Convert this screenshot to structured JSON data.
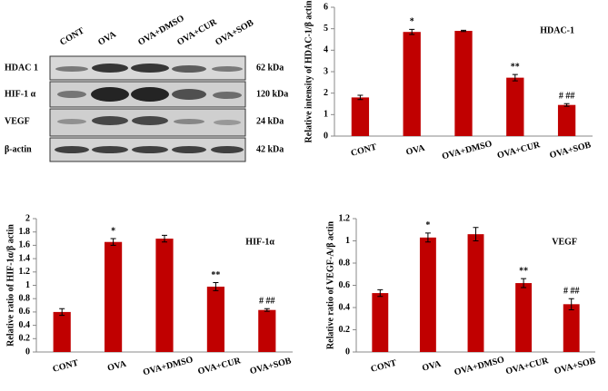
{
  "blot": {
    "lanes": [
      "CONT",
      "OVA",
      "OVA+DMSO",
      "OVA+CUR",
      "OVA+SOB"
    ],
    "rows": [
      {
        "name": "HDAC 1",
        "size": "62 kDa"
      },
      {
        "name": "HIF-1 α",
        "size": "120 kDa"
      },
      {
        "name": "VEGF",
        "size": "24 kDa"
      },
      {
        "name": "β-actin",
        "size": "42 kDa"
      }
    ]
  },
  "chart_data": [
    {
      "type": "bar",
      "title": "HDAC-1",
      "ylabel": "Relative intensity of HDAC-1/β actin",
      "categories": [
        "CONT",
        "OVA",
        "OVA+DMSO",
        "OVA+CUR",
        "OVA+SOB"
      ],
      "values": [
        1.8,
        4.85,
        4.9,
        2.72,
        1.45
      ],
      "errors": [
        0.1,
        0.12,
        0.03,
        0.15,
        0.06
      ],
      "annotations": [
        null,
        "*",
        null,
        "**",
        "# ##"
      ],
      "color": "#c00000",
      "ylim": [
        0,
        6
      ],
      "yticks": [
        0,
        1,
        2,
        3,
        4,
        5,
        6
      ]
    },
    {
      "type": "bar",
      "title": "HIF-1α",
      "ylabel": "Relative ratio of HIF-1α/β actin",
      "categories": [
        "CONT",
        "OVA",
        "OVA+DMSO",
        "OVA+CUR",
        "OVA+SOB"
      ],
      "values": [
        0.6,
        1.65,
        1.7,
        0.98,
        0.63
      ],
      "errors": [
        0.05,
        0.05,
        0.05,
        0.06,
        0.02
      ],
      "annotations": [
        null,
        "*",
        null,
        "**",
        "# ##"
      ],
      "color": "#c00000",
      "ylim": [
        0,
        2
      ],
      "yticks": [
        0,
        0.2,
        0.4,
        0.6,
        0.8,
        1,
        1.2,
        1.4,
        1.6,
        1.8,
        2
      ]
    },
    {
      "type": "bar",
      "title": "VEGF",
      "ylabel": "Relative ratio of VEGF-A/β actin",
      "categories": [
        "CONT",
        "OVA",
        "OVA+DMSO",
        "OVA+CUR",
        "OVA+SOB"
      ],
      "values": [
        0.53,
        1.03,
        1.06,
        0.62,
        0.43
      ],
      "errors": [
        0.03,
        0.04,
        0.06,
        0.04,
        0.05
      ],
      "annotations": [
        null,
        "*",
        null,
        "**",
        "# ##"
      ],
      "color": "#c00000",
      "ylim": [
        0,
        1.2
      ],
      "yticks": [
        0,
        0.2,
        0.4,
        0.6,
        0.8,
        1,
        1.2
      ]
    }
  ]
}
